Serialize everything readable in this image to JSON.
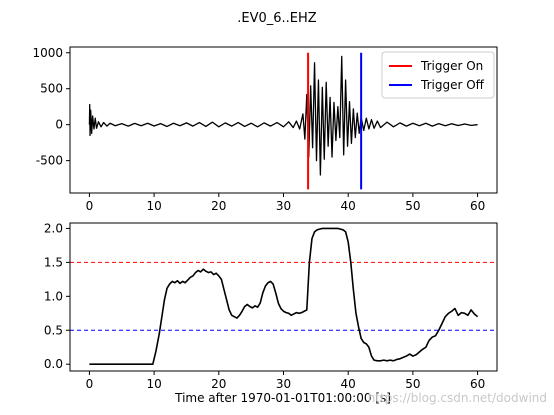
{
  "figure": {
    "title": ".EV0_6..EHZ",
    "watermark": "https://blog.csdn.net/dodwind"
  },
  "chart_data": [
    {
      "type": "line",
      "title": ".EV0_6..EHZ",
      "xlim": [
        -3,
        63
      ],
      "ylim": [
        -950,
        1080
      ],
      "xticks": [
        0,
        10,
        20,
        30,
        40,
        50,
        60
      ],
      "yticks": [
        -500,
        0,
        500,
        1000
      ],
      "grid": false,
      "legend": {
        "position": "top-right",
        "entries": [
          {
            "label": "Trigger On",
            "color": "#ff0000"
          },
          {
            "label": "Trigger Off",
            "color": "#0000ff"
          }
        ]
      },
      "series": [
        {
          "color": "#000000",
          "x": [
            0,
            0.05,
            0.1,
            0.2,
            0.35,
            0.5,
            0.7,
            0.9,
            1.1,
            1.4,
            1.8,
            2.2,
            2.7,
            3.2,
            4,
            5,
            6,
            7,
            8,
            9,
            10,
            11,
            12,
            13,
            14,
            15,
            16,
            17,
            18,
            19,
            20,
            21,
            22,
            23,
            24,
            25,
            26,
            27,
            28,
            29,
            30,
            30.8,
            31.5,
            32,
            32.5,
            33,
            33.3,
            33.6,
            33.9,
            34.2,
            34.5,
            34.8,
            35.1,
            35.4,
            35.7,
            36,
            36.3,
            36.6,
            36.9,
            37.2,
            37.5,
            37.8,
            38.1,
            38.4,
            38.7,
            39,
            39.3,
            39.6,
            39.9,
            40.2,
            40.5,
            40.8,
            41.1,
            41.4,
            41.7,
            42,
            42.4,
            42.8,
            43.2,
            43.6,
            44,
            44.5,
            45,
            46,
            47,
            48,
            49,
            50,
            51,
            52,
            53,
            54,
            55,
            56,
            57,
            58,
            59,
            60
          ],
          "values": [
            0,
            280,
            -150,
            200,
            -120,
            120,
            -60,
            90,
            -50,
            40,
            -30,
            30,
            -20,
            20,
            -15,
            15,
            -20,
            18,
            -15,
            20,
            -18,
            15,
            -25,
            20,
            -15,
            25,
            -20,
            30,
            -25,
            35,
            -30,
            25,
            -20,
            30,
            -25,
            20,
            -30,
            25,
            -20,
            30,
            -30,
            40,
            -40,
            50,
            -60,
            150,
            -200,
            420,
            -450,
            540,
            -320,
            860,
            -500,
            620,
            -700,
            520,
            -480,
            590,
            -300,
            380,
            -450,
            310,
            -220,
            250,
            -180,
            950,
            -420,
            620,
            -300,
            320,
            -260,
            220,
            -180,
            160,
            -120,
            100,
            -80,
            90,
            -60,
            70,
            -50,
            50,
            -40,
            35,
            -30,
            25,
            -20,
            20,
            -15,
            20,
            -20,
            15,
            -15,
            12,
            -12,
            10,
            -10,
            0
          ]
        }
      ],
      "vlines": [
        {
          "x": 33.8,
          "color": "#ff0000",
          "ymin": -900,
          "ymax": 1000
        },
        {
          "x": 42.0,
          "color": "#0000ff",
          "ymin": -900,
          "ymax": 1000
        }
      ]
    },
    {
      "type": "line",
      "xlabel": "Time after 1970-01-01T01:00:00 [s]",
      "xlim": [
        -3,
        63
      ],
      "ylim": [
        -0.1,
        2.08
      ],
      "xticks": [
        0,
        10,
        20,
        30,
        40,
        50,
        60
      ],
      "yticks": [
        0.0,
        0.5,
        1.0,
        1.5,
        2.0
      ],
      "ytick_labels": [
        "0.0",
        "0.5",
        "1.0",
        "1.5",
        "2.0"
      ],
      "grid": false,
      "series": [
        {
          "color": "#000000",
          "x": [
            0,
            5,
            9.8,
            10.3,
            10.8,
            11.2,
            11.6,
            12.0,
            12.4,
            12.8,
            13.2,
            13.6,
            14.0,
            14.4,
            14.8,
            15.2,
            15.6,
            16.0,
            16.4,
            16.8,
            17.2,
            17.6,
            18.0,
            18.4,
            18.8,
            19.2,
            19.6,
            20.0,
            20.4,
            20.8,
            21.2,
            21.6,
            22.0,
            22.4,
            22.8,
            23.2,
            23.6,
            24.0,
            24.4,
            24.8,
            25.2,
            25.6,
            26.0,
            26.4,
            26.8,
            27.2,
            27.6,
            28.0,
            28.4,
            28.8,
            29.2,
            29.6,
            30.0,
            30.4,
            30.8,
            31.2,
            31.6,
            32.0,
            32.4,
            32.8,
            33.2,
            33.6,
            34.0,
            34.4,
            34.8,
            35.2,
            35.6,
            36.0,
            36.4,
            36.8,
            37.2,
            37.6,
            38.0,
            38.4,
            38.8,
            39.2,
            39.6,
            40.0,
            40.4,
            40.8,
            41.2,
            41.6,
            42.0,
            42.4,
            42.8,
            43.2,
            43.6,
            44.0,
            44.5,
            45.0,
            45.5,
            46.0,
            46.5,
            47.0,
            47.5,
            48.0,
            48.5,
            49.0,
            49.5,
            50.0,
            50.5,
            51.0,
            51.5,
            52.0,
            52.5,
            53.0,
            53.5,
            54.0,
            54.5,
            55.0,
            55.5,
            56.0,
            56.5,
            57.0,
            57.5,
            58.0,
            58.5,
            59.0,
            59.5,
            60.0
          ],
          "values": [
            0.0,
            0.0,
            0.0,
            0.2,
            0.45,
            0.7,
            0.95,
            1.12,
            1.18,
            1.22,
            1.2,
            1.23,
            1.19,
            1.22,
            1.2,
            1.24,
            1.28,
            1.3,
            1.35,
            1.38,
            1.36,
            1.4,
            1.37,
            1.35,
            1.36,
            1.32,
            1.34,
            1.3,
            1.25,
            1.1,
            0.95,
            0.8,
            0.72,
            0.7,
            0.68,
            0.72,
            0.78,
            0.85,
            0.88,
            0.85,
            0.83,
            0.86,
            0.84,
            0.9,
            1.05,
            1.15,
            1.2,
            1.22,
            1.18,
            1.05,
            0.9,
            0.82,
            0.78,
            0.76,
            0.75,
            0.72,
            0.74,
            0.76,
            0.75,
            0.76,
            0.78,
            0.8,
            1.5,
            1.85,
            1.95,
            1.98,
            1.99,
            2.0,
            2.0,
            2.0,
            2.0,
            2.0,
            2.0,
            2.0,
            1.99,
            1.98,
            1.95,
            1.8,
            1.5,
            1.1,
            0.75,
            0.55,
            0.38,
            0.32,
            0.3,
            0.25,
            0.12,
            0.06,
            0.05,
            0.05,
            0.06,
            0.05,
            0.06,
            0.05,
            0.07,
            0.08,
            0.1,
            0.12,
            0.15,
            0.12,
            0.14,
            0.18,
            0.22,
            0.25,
            0.35,
            0.4,
            0.42,
            0.5,
            0.6,
            0.7,
            0.75,
            0.78,
            0.82,
            0.72,
            0.76,
            0.75,
            0.72,
            0.8,
            0.74,
            0.7
          ]
        }
      ],
      "hlines": [
        {
          "y": 1.5,
          "color": "#ff0000",
          "style": "dashed"
        },
        {
          "y": 0.5,
          "color": "#0000ff",
          "style": "dashed"
        }
      ]
    }
  ]
}
